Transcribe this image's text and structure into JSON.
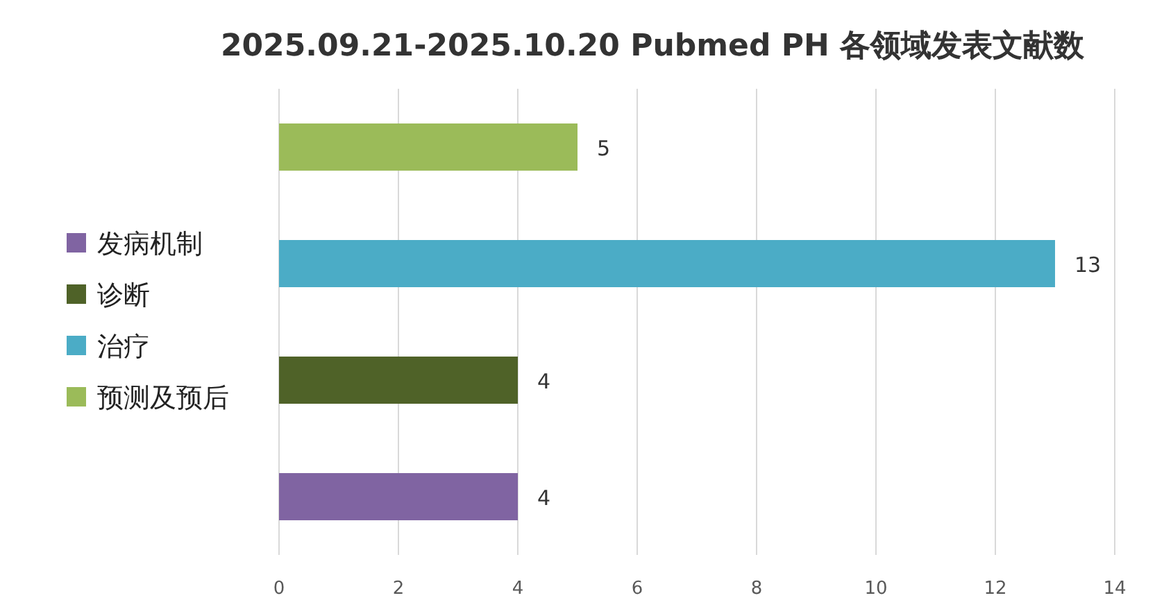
{
  "chart_data": {
    "type": "bar",
    "orientation": "horizontal",
    "title": "2025.09.21-2025.10.20 Pubmed PH 各领域发表文献数",
    "categories": [
      null,
      null,
      null,
      null
    ],
    "series": [
      {
        "name": "发病机制",
        "color": "#8064a2",
        "values": [
          null,
          null,
          null,
          4
        ]
      },
      {
        "name": "诊断",
        "color": "#4f6228",
        "values": [
          null,
          null,
          4,
          null
        ]
      },
      {
        "name": "治疗",
        "color": "#4bacc6",
        "values": [
          null,
          13,
          null,
          null
        ]
      },
      {
        "name": "预测及预后",
        "color": "#9bbb59",
        "values": [
          5,
          null,
          null,
          null
        ]
      }
    ],
    "xlim": [
      0,
      14
    ],
    "xticks": [
      0,
      2,
      4,
      6,
      8,
      10,
      12,
      14
    ],
    "grid": "x",
    "legend": "left",
    "data_labels": true
  }
}
